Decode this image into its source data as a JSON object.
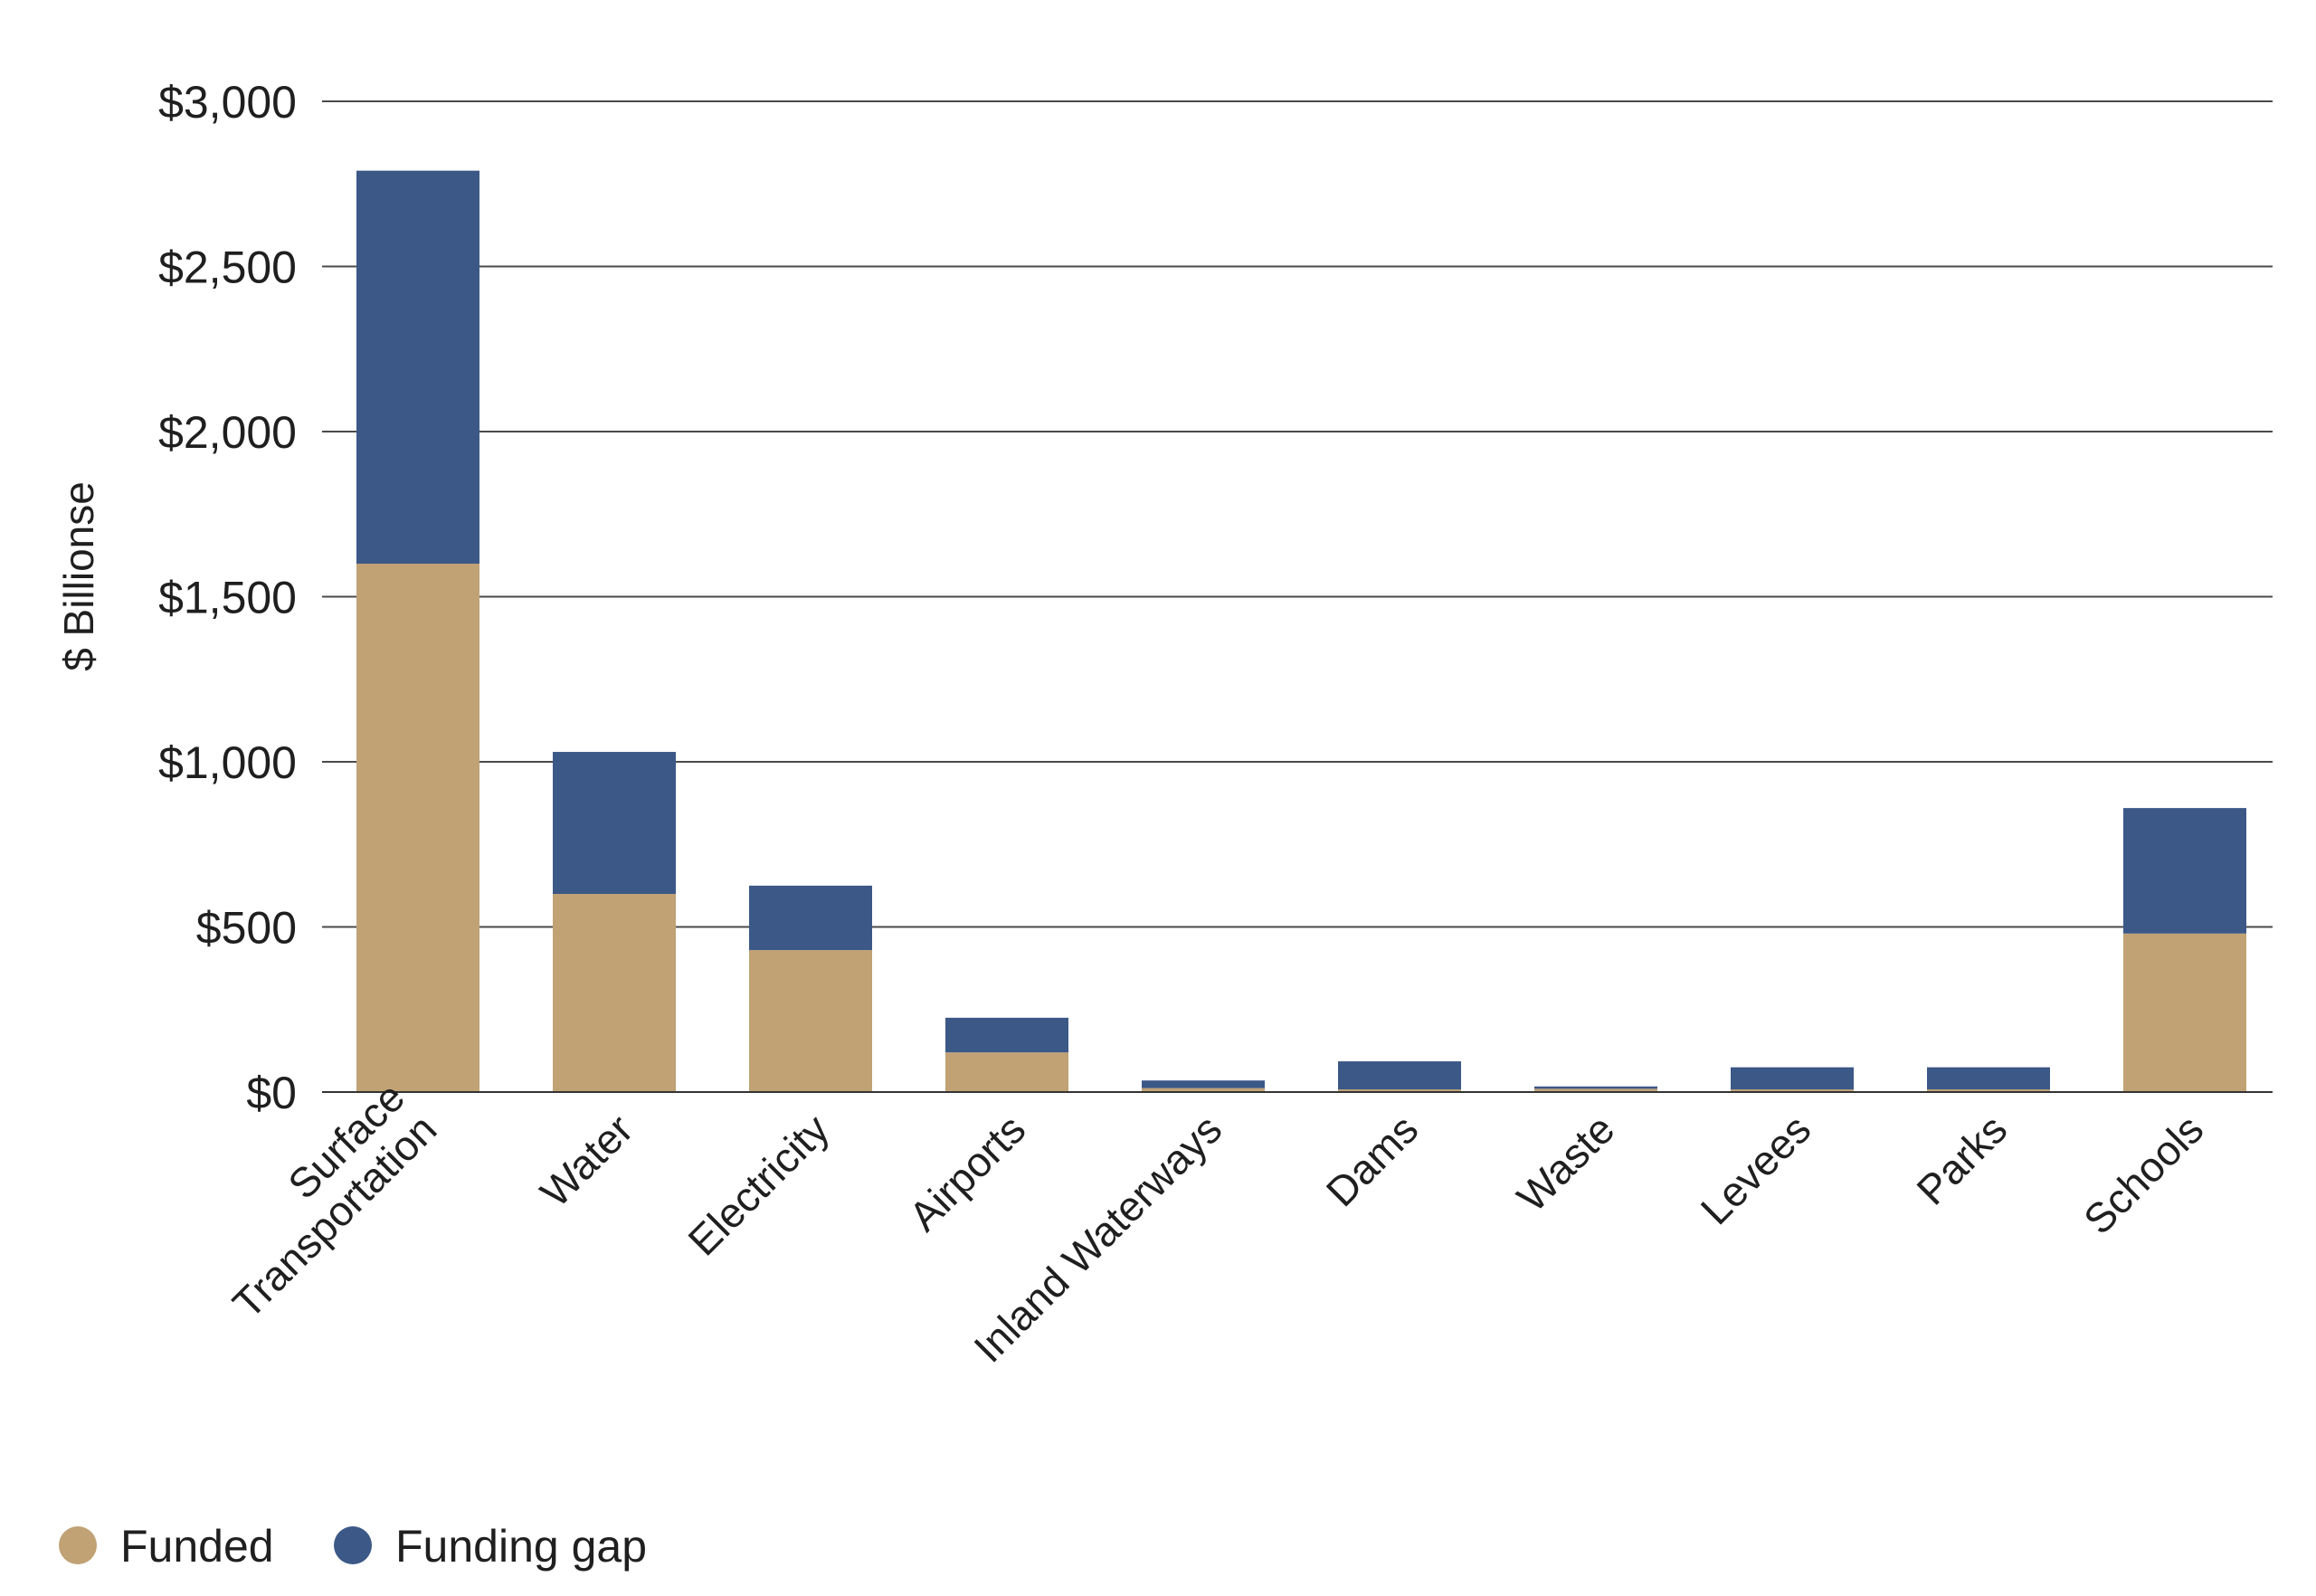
{
  "chart_data": {
    "type": "bar",
    "stacked": true,
    "title": "",
    "xlabel": "",
    "ylabel": "$ Billionse",
    "ylim": [
      0,
      3000
    ],
    "yticks": [
      0,
      500,
      1000,
      1500,
      2000,
      2500,
      3000
    ],
    "ytick_labels": [
      "$0",
      "$500",
      "$1,000",
      "$1,500",
      "$2,000",
      "$2,500",
      "$3,000"
    ],
    "grid": true,
    "legend_position": "bottom-left",
    "categories": [
      [
        "Surface",
        "Transportation"
      ],
      [
        "Water"
      ],
      [
        "Electricity"
      ],
      [
        "Airports"
      ],
      [
        "Inland Waterways"
      ],
      [
        "Dams"
      ],
      [
        "Waste"
      ],
      [
        "Levees"
      ],
      [
        "Parks"
      ],
      [
        "Schools"
      ]
    ],
    "series": [
      {
        "name": "Funded",
        "color": "#c0a275",
        "values": [
          1600,
          600,
          430,
          120,
          12,
          8,
          10,
          8,
          8,
          480
        ]
      },
      {
        "name": "Funding gap",
        "color": "#3c5887",
        "values": [
          1190,
          430,
          195,
          105,
          23,
          85,
          7,
          67,
          67,
          380
        ]
      }
    ]
  }
}
